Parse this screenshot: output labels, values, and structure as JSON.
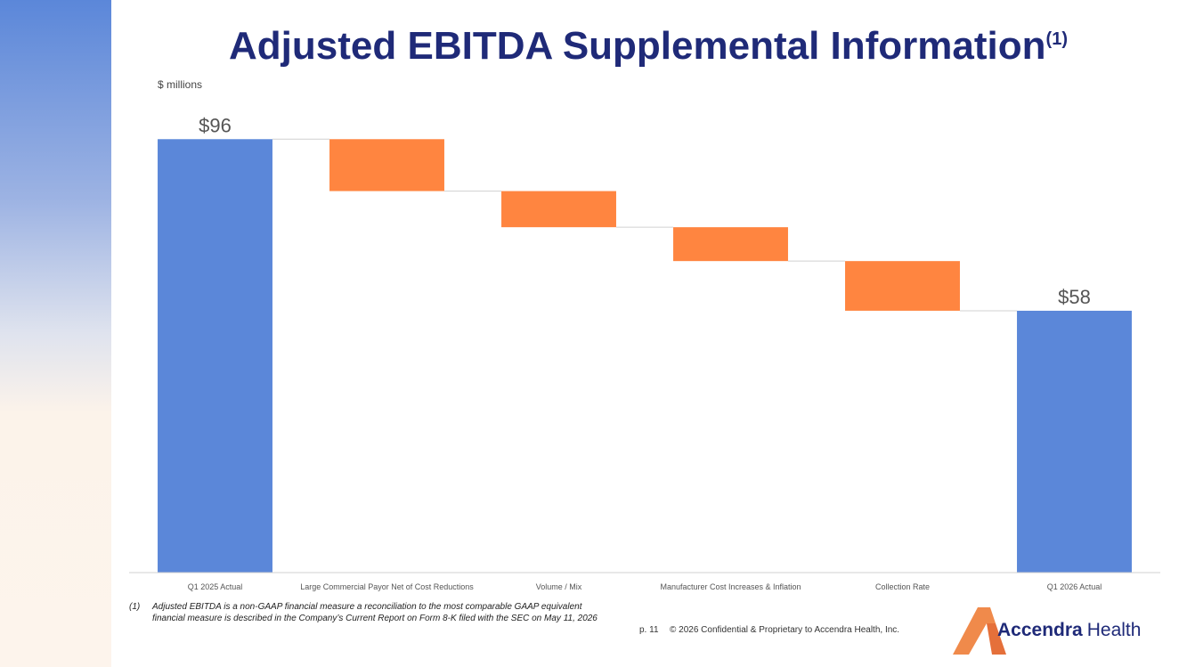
{
  "chart_data": {
    "type": "waterfall",
    "title": "Adjusted EBITDA Supplemental Information",
    "title_note": "(1)",
    "unit_label": "$ millions",
    "categories": [
      "Q1 2025 Actual",
      "Large Commercial Payor Net of Cost Reductions",
      "Volume / Mix",
      "Manufacturer Cost Increases & Inflation",
      "Collection Rate",
      "Q1 2026 Actual"
    ],
    "values": [
      96,
      -11.5,
      -8,
      -7.5,
      -11,
      58
    ],
    "value_labels": [
      "$96",
      null,
      null,
      null,
      null,
      "$58"
    ],
    "measure": [
      "total",
      "relative",
      "relative",
      "relative",
      "relative",
      "total"
    ],
    "total_color": "#5b87d9",
    "decrease_color": "#ff8540",
    "ylim": [
      0,
      100
    ]
  },
  "footnote": {
    "marker": "(1)",
    "lines": [
      "Adjusted EBITDA is a non-GAAP financial measure a reconciliation to the most comparable GAAP equivalent",
      "financial measure is described in the Company’s Current Report on Form 8-K filed with the SEC on May 11, 2026"
    ]
  },
  "footer": {
    "page": "p. 11",
    "copyright": "© 2026 Confidential & Proprietary to Accendra Health, Inc."
  },
  "logo": {
    "name": "Accendra",
    "suffix": "Health"
  }
}
